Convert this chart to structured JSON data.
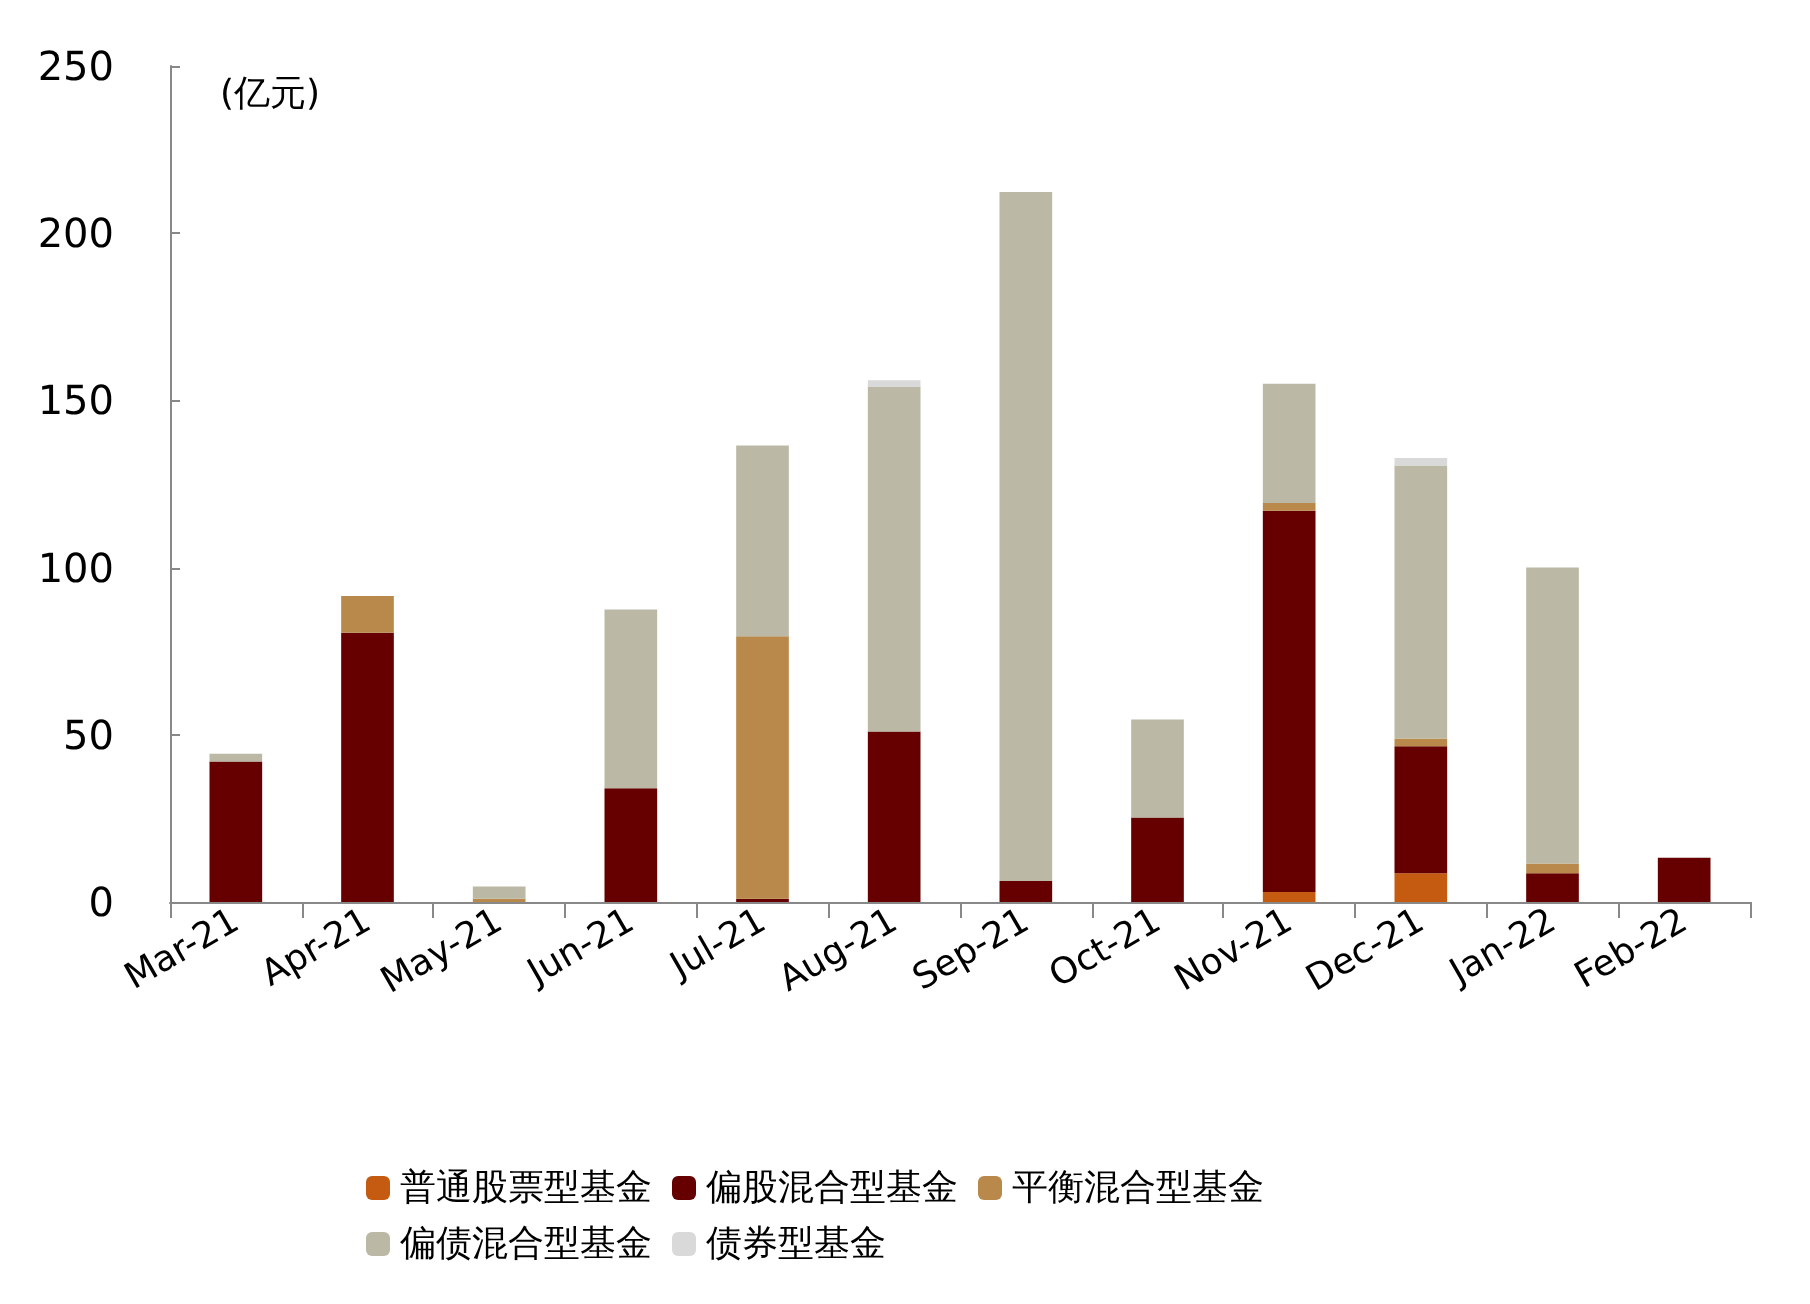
{
  "chart_data": {
    "type": "bar",
    "stacked": true,
    "annotations": [
      "(亿元)"
    ],
    "categories": [
      "Mar-21",
      "Apr-21",
      "May-21",
      "Jun-21",
      "Jul-21",
      "Aug-21",
      "Sep-21",
      "Oct-21",
      "Nov-21",
      "Dec-21",
      "Jan-22",
      "Feb-22"
    ],
    "series": [
      {
        "name": "普通股票型基金",
        "color": "#c55a11",
        "values": [
          0,
          0,
          0,
          0,
          0,
          0,
          0,
          0,
          3,
          8.6,
          0,
          0
        ]
      },
      {
        "name": "偏股混合型基金",
        "color": "#660000",
        "values": [
          42,
          80.5,
          0,
          34,
          1,
          51,
          6.3,
          25.3,
          114,
          38,
          8.6,
          13.2
        ]
      },
      {
        "name": "平衡混合型基金",
        "color": "#b8894a",
        "values": [
          0,
          11,
          1,
          0,
          78.5,
          0,
          0,
          0,
          2.3,
          2.3,
          2.9,
          0
        ]
      },
      {
        "name": "偏债混合型基金",
        "color": "#bbb9a6",
        "values": [
          2.3,
          0,
          3.6,
          53.5,
          57,
          103,
          206,
          29.3,
          35.7,
          81.6,
          88.5,
          0
        ]
      },
      {
        "name": "债券型基金",
        "color": "#d9d9d9",
        "values": [
          0,
          0,
          0,
          0,
          0,
          2,
          0,
          0,
          0,
          2.3,
          0,
          0
        ]
      }
    ],
    "ylim": [
      0,
      250
    ],
    "yticks": [
      0,
      50,
      100,
      150,
      200,
      250
    ],
    "grid": false,
    "legend": "bottom"
  }
}
